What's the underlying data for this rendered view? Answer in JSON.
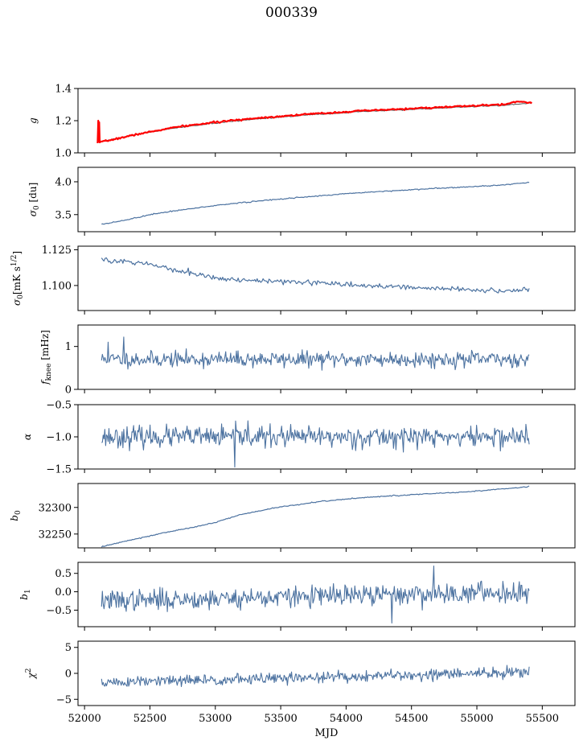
{
  "figure": {
    "title": "000339"
  },
  "chart_data": [
    {
      "type": "line",
      "ylabel": "g",
      "xlabel": "",
      "xlim": [
        51950,
        55750
      ],
      "ylim": [
        1.0,
        1.4
      ],
      "yticks": [
        1.0,
        1.2,
        1.4
      ],
      "yticklabels": [
        "1.0",
        "1.2",
        "1.4"
      ],
      "grid": false,
      "series": [
        {
          "color": "#555555",
          "width": 1.0,
          "points": [
            [
              52100,
              1.065
            ],
            [
              52400,
              1.115
            ],
            [
              52700,
              1.155
            ],
            [
              53000,
              1.185
            ],
            [
              53300,
              1.21
            ],
            [
              53700,
              1.235
            ],
            [
              54100,
              1.255
            ],
            [
              54500,
              1.27
            ],
            [
              54900,
              1.285
            ],
            [
              55200,
              1.295
            ],
            [
              55420,
              1.31
            ]
          ]
        },
        {
          "color": "#ff0000",
          "width": 2.2,
          "points": [
            [
              52100,
              1.06
            ],
            [
              52105,
              1.2
            ],
            [
              52110,
              1.07
            ],
            [
              52112,
              1.19
            ],
            [
              52116,
              1.065
            ],
            [
              52400,
              1.115
            ],
            [
              52700,
              1.16
            ],
            [
              53000,
              1.19
            ],
            [
              53300,
              1.215
            ],
            [
              53700,
              1.24
            ],
            [
              54100,
              1.26
            ],
            [
              54500,
              1.275
            ],
            [
              54900,
              1.29
            ],
            [
              55200,
              1.3
            ],
            [
              55320,
              1.32
            ],
            [
              55420,
              1.31
            ]
          ]
        }
      ]
    },
    {
      "type": "line",
      "ylabel": "σ0 [du]",
      "xlabel": "",
      "xlim": [
        51950,
        55750
      ],
      "ylim": [
        3.24,
        4.22
      ],
      "yticks": [
        3.5,
        4.0
      ],
      "yticklabels": [
        "3.5",
        "4.0"
      ],
      "grid": false,
      "series": [
        {
          "color": "#4c72a0",
          "width": 1.2,
          "points": [
            [
              52130,
              3.35
            ],
            [
              52300,
              3.41
            ],
            [
              52500,
              3.5
            ],
            [
              52800,
              3.59
            ],
            [
              53100,
              3.66
            ],
            [
              53400,
              3.72
            ],
            [
              53700,
              3.77
            ],
            [
              54000,
              3.82
            ],
            [
              54400,
              3.87
            ],
            [
              54800,
              3.91
            ],
            [
              55200,
              3.95
            ],
            [
              55400,
              3.99
            ]
          ]
        }
      ]
    },
    {
      "type": "line",
      "ylabel": "σ0[mK s^1/2]",
      "xlabel": "",
      "xlim": [
        51950,
        55750
      ],
      "ylim": [
        1.0825,
        1.1275
      ],
      "yticks": [
        1.1,
        1.125
      ],
      "yticklabels": [
        "1.100",
        "1.125"
      ],
      "grid": false,
      "series": [
        {
          "color": "#4c72a0",
          "width": 1.2,
          "noise": 0.0009,
          "points": [
            [
              52130,
              1.118
            ],
            [
              52400,
              1.116
            ],
            [
              52600,
              1.113
            ],
            [
              52700,
              1.11
            ],
            [
              52900,
              1.107
            ],
            [
              53100,
              1.104
            ],
            [
              53500,
              1.103
            ],
            [
              53800,
              1.102
            ],
            [
              54100,
              1.1
            ],
            [
              54400,
              1.099
            ],
            [
              54700,
              1.098
            ],
            [
              55000,
              1.097
            ],
            [
              55200,
              1.096
            ],
            [
              55400,
              1.098
            ]
          ]
        }
      ]
    },
    {
      "type": "line",
      "ylabel": "f_knee [mHz]",
      "xlabel": "",
      "xlim": [
        51950,
        55750
      ],
      "ylim": [
        0,
        1.5
      ],
      "yticks": [
        0,
        1
      ],
      "yticklabels": [
        "0",
        "1"
      ],
      "grid": false,
      "series": [
        {
          "color": "#4c72a0",
          "width": 1.1,
          "mean": 0.7,
          "sd": 0.09,
          "seed": 11,
          "spikes": [
            [
              52300,
              1.22
            ],
            [
              52180,
              1.1
            ]
          ],
          "points": [
            [
              52130,
              0.7
            ],
            [
              55400,
              0.7
            ]
          ]
        }
      ]
    },
    {
      "type": "line",
      "ylabel": "α",
      "xlabel": "",
      "xlim": [
        51950,
        55750
      ],
      "ylim": [
        -1.5,
        -0.5
      ],
      "yticks": [
        -1.5,
        -1.0,
        -0.5
      ],
      "yticklabels": [
        "−1.5",
        "−1.0",
        "−0.5"
      ],
      "grid": false,
      "series": [
        {
          "color": "#4c72a0",
          "width": 1.1,
          "mean": -1.0,
          "sd": 0.08,
          "seed": 23,
          "spikes": [
            [
              53150,
              -1.47
            ],
            [
              53250,
              -0.75
            ]
          ],
          "points": [
            [
              52130,
              -1.0
            ],
            [
              55400,
              -1.0
            ]
          ]
        }
      ]
    },
    {
      "type": "line",
      "ylabel": "b0",
      "xlabel": "",
      "xlim": [
        51950,
        55750
      ],
      "ylim": [
        32224,
        32345
      ],
      "yticks": [
        32250,
        32300
      ],
      "yticklabels": [
        "32250",
        "32300"
      ],
      "grid": false,
      "series": [
        {
          "color": "#4c72a0",
          "width": 1.2,
          "points": [
            [
              52130,
              32226
            ],
            [
              52300,
              32236
            ],
            [
              52600,
              32252
            ],
            [
              52900,
              32266
            ],
            [
              53000,
              32272
            ],
            [
              53200,
              32287
            ],
            [
              53500,
              32301
            ],
            [
              53800,
              32311
            ],
            [
              54100,
              32318
            ],
            [
              54500,
              32324
            ],
            [
              54900,
              32329
            ],
            [
              55200,
              32335
            ],
            [
              55400,
              32339
            ]
          ]
        }
      ]
    },
    {
      "type": "line",
      "ylabel": "b1",
      "xlabel": "",
      "xlim": [
        51950,
        55750
      ],
      "ylim": [
        -0.95,
        0.8
      ],
      "yticks": [
        -0.5,
        0.0,
        0.5
      ],
      "yticklabels": [
        "−0.5",
        "0.0",
        "0.5"
      ],
      "grid": false,
      "series": [
        {
          "color": "#4c72a0",
          "width": 1.1,
          "mean": -0.1,
          "sd": 0.14,
          "seed": 37,
          "trend": 0.12,
          "spikes": [
            [
              54350,
              -0.85
            ],
            [
              54670,
              0.7
            ]
          ],
          "points": [
            [
              52130,
              -0.25
            ],
            [
              55400,
              0.0
            ]
          ]
        }
      ]
    },
    {
      "type": "line",
      "ylabel": "χ2",
      "xlabel": "MJD",
      "xlim": [
        51950,
        55750
      ],
      "ylim": [
        -6.2,
        6.2
      ],
      "yticks": [
        -5,
        0,
        5
      ],
      "yticklabels": [
        "−5",
        "0",
        "5"
      ],
      "xticks": [
        52000,
        52500,
        53000,
        53500,
        54000,
        54500,
        55000,
        55500
      ],
      "xticklabels": [
        "52000",
        "52500",
        "53000",
        "53500",
        "54000",
        "54500",
        "55000",
        "55500"
      ],
      "grid": false,
      "series": [
        {
          "color": "#4c72a0",
          "width": 1.1,
          "mean": -0.5,
          "sd": 0.55,
          "seed": 51,
          "trend": 1.0,
          "points": [
            [
              52130,
              -1.8
            ],
            [
              55400,
              0.2
            ]
          ]
        }
      ]
    }
  ]
}
